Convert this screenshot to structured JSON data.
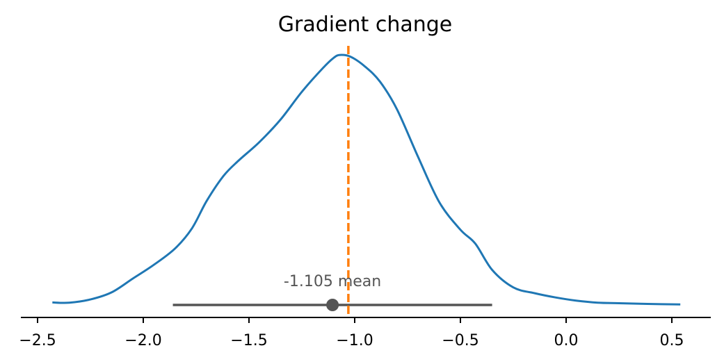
{
  "chart_data": {
    "type": "line",
    "title": "Gradient change",
    "xlabel": "",
    "ylabel": "",
    "xlim": [
      -2.6,
      0.7
    ],
    "ylim": [
      0,
      1.0
    ],
    "grid": false,
    "x_ticks": [
      -2.5,
      -2.0,
      -1.5,
      -1.0,
      -0.5,
      0.0,
      0.5
    ],
    "x_tick_labels": [
      "−2.5",
      "−2.0",
      "−1.5",
      "−1.0",
      "−0.5",
      "0.0",
      "0.5"
    ],
    "series": [
      {
        "color": "#1f77b4",
        "x": [
          -2.43,
          -2.35,
          -2.25,
          -2.15,
          -2.05,
          -1.95,
          -1.85,
          -1.77,
          -1.7,
          -1.62,
          -1.55,
          -1.45,
          -1.35,
          -1.25,
          -1.15,
          -1.1,
          -1.07,
          -1.02,
          -0.95,
          -0.88,
          -0.8,
          -0.7,
          -0.6,
          -0.5,
          -0.43,
          -0.35,
          -0.25,
          -0.15,
          -0.05,
          0.05,
          0.15,
          0.25,
          0.35,
          0.45,
          0.54
        ],
        "y": [
          0.01,
          0.009,
          0.022,
          0.05,
          0.105,
          0.16,
          0.225,
          0.305,
          0.415,
          0.515,
          0.575,
          0.65,
          0.74,
          0.85,
          0.945,
          0.985,
          0.997,
          0.99,
          0.95,
          0.89,
          0.78,
          0.59,
          0.41,
          0.3,
          0.245,
          0.14,
          0.07,
          0.047,
          0.03,
          0.017,
          0.009,
          0.007,
          0.005,
          0.003,
          0.002
        ]
      }
    ],
    "reference_line": {
      "x": -1.03,
      "color": "#ff7f0e",
      "style": "dashed"
    },
    "interval": {
      "low": -1.86,
      "high": -0.35,
      "point": -1.105,
      "color": "#555555"
    },
    "annotation": "-1.105 mean"
  }
}
